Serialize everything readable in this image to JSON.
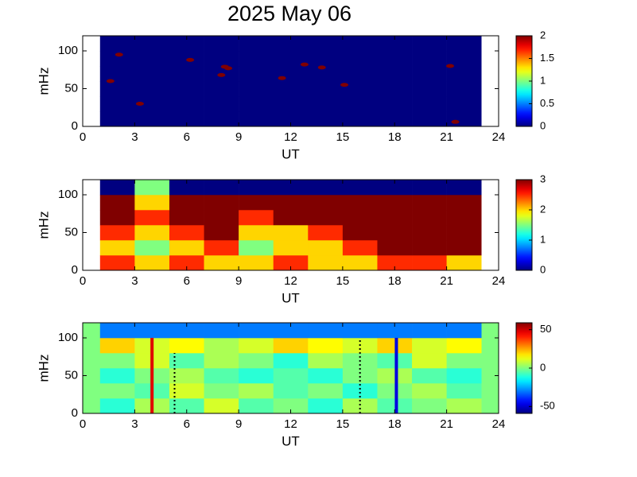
{
  "title": "2025 May 06",
  "chart_data": [
    {
      "type": "heatmap",
      "xlabel": "UT",
      "ylabel": "mHz",
      "xlim": [
        0,
        24
      ],
      "xticks": [
        0,
        3,
        6,
        9,
        12,
        15,
        18,
        21,
        24
      ],
      "ylim": [
        0,
        120
      ],
      "yticks": [
        0,
        50,
        100
      ],
      "clim": [
        0,
        2
      ],
      "cticks": [
        0,
        0.5,
        1,
        1.5,
        2
      ],
      "x_edges": [
        1,
        3,
        5,
        7,
        9,
        11,
        13,
        15,
        17,
        19,
        21,
        23
      ],
      "y_edges": [
        0,
        20,
        40,
        60,
        80,
        100,
        120
      ],
      "z": [
        [
          0,
          0,
          0,
          0,
          0,
          0,
          0,
          0,
          0,
          0,
          0
        ],
        [
          0,
          0,
          0,
          0,
          0,
          0,
          0,
          0,
          0,
          0,
          0
        ],
        [
          0,
          0,
          0,
          0,
          0,
          0,
          0,
          0,
          0,
          0,
          0
        ],
        [
          0,
          0,
          0,
          0,
          0,
          0,
          0,
          0,
          0,
          0,
          0
        ],
        [
          0,
          0,
          0,
          0,
          0,
          0,
          0,
          0,
          0,
          0,
          0
        ],
        [
          0,
          0,
          0,
          0,
          0,
          0,
          0,
          0,
          0,
          0,
          0
        ]
      ],
      "spots": {
        "x": [
          2.1,
          1.6,
          3.3,
          6.2,
          8.2,
          8.4,
          8.0,
          11.5,
          12.8,
          13.8,
          15.1,
          21.5,
          21.2
        ],
        "y": [
          95,
          60,
          30,
          88,
          79,
          77,
          68,
          64,
          82,
          78,
          55,
          6,
          80
        ],
        "value": 2
      }
    },
    {
      "type": "heatmap",
      "xlabel": "UT",
      "ylabel": "mHz",
      "xlim": [
        0,
        24
      ],
      "xticks": [
        0,
        3,
        6,
        9,
        12,
        15,
        18,
        21,
        24
      ],
      "ylim": [
        0,
        120
      ],
      "yticks": [
        0,
        50,
        100
      ],
      "clim": [
        0,
        3
      ],
      "cticks": [
        0,
        1,
        2,
        3
      ],
      "x_edges": [
        1,
        3,
        5,
        7,
        9,
        11,
        13,
        15,
        17,
        19,
        21,
        23
      ],
      "y_edges": [
        0,
        20,
        40,
        60,
        80,
        100,
        120
      ],
      "z": [
        [
          2.5,
          2,
          2.5,
          2,
          2,
          2.5,
          2,
          2,
          2.5,
          2.5,
          2
        ],
        [
          2,
          1.5,
          2,
          2.5,
          1.5,
          2,
          2,
          2.5,
          3,
          3,
          3
        ],
        [
          2.5,
          2,
          2.5,
          3,
          2,
          2,
          2.5,
          3,
          3,
          3,
          3
        ],
        [
          3,
          2.5,
          3,
          3,
          2.5,
          3,
          3,
          3,
          3,
          3,
          3
        ],
        [
          3,
          2,
          3,
          3,
          3,
          3,
          3,
          3,
          3,
          3,
          3
        ],
        [
          0,
          1.5,
          0,
          0,
          0,
          0,
          0,
          0,
          0,
          0,
          0
        ]
      ]
    },
    {
      "type": "heatmap",
      "xlabel": "UT",
      "ylabel": "mHz",
      "xlim": [
        0,
        24
      ],
      "xticks": [
        0,
        3,
        6,
        9,
        12,
        15,
        18,
        21,
        24
      ],
      "ylim": [
        0,
        120
      ],
      "yticks": [
        0,
        50,
        100
      ],
      "clim": [
        -59,
        59
      ],
      "cticks": [
        -50,
        0,
        50
      ],
      "background": "#80ff80",
      "x_edges": [
        1,
        3,
        5,
        7,
        9,
        11,
        13,
        15,
        17,
        19,
        21,
        23
      ],
      "y_edges": [
        0,
        20,
        40,
        60,
        80,
        100,
        120
      ],
      "z": [
        [
          -10,
          5,
          -5,
          10,
          -5,
          0,
          -10,
          5,
          -5,
          0,
          5
        ],
        [
          0,
          -5,
          10,
          0,
          5,
          -5,
          0,
          -10,
          0,
          5,
          -5
        ],
        [
          -10,
          0,
          5,
          -5,
          -10,
          -5,
          -10,
          0,
          5,
          -5,
          -10
        ],
        [
          0,
          10,
          -5,
          5,
          0,
          -10,
          5,
          0,
          -5,
          10,
          0
        ],
        [
          20,
          10,
          15,
          5,
          10,
          20,
          15,
          10,
          20,
          10,
          15
        ],
        [
          -30,
          -30,
          -30,
          -30,
          -30,
          -30,
          -30,
          -30,
          -30,
          -30,
          -30
        ]
      ],
      "lines": [
        {
          "x": 4,
          "y": [
            0,
            100
          ],
          "color": "#e00000",
          "style": "solid"
        },
        {
          "x": 5.3,
          "y": [
            0,
            80
          ],
          "color": "#000000",
          "style": "dotted"
        },
        {
          "x": 16,
          "y": [
            0,
            100
          ],
          "color": "#000000",
          "style": "dotted"
        },
        {
          "x": 18.1,
          "y": [
            0,
            100
          ],
          "color": "#0000e0",
          "style": "solid"
        }
      ]
    }
  ]
}
